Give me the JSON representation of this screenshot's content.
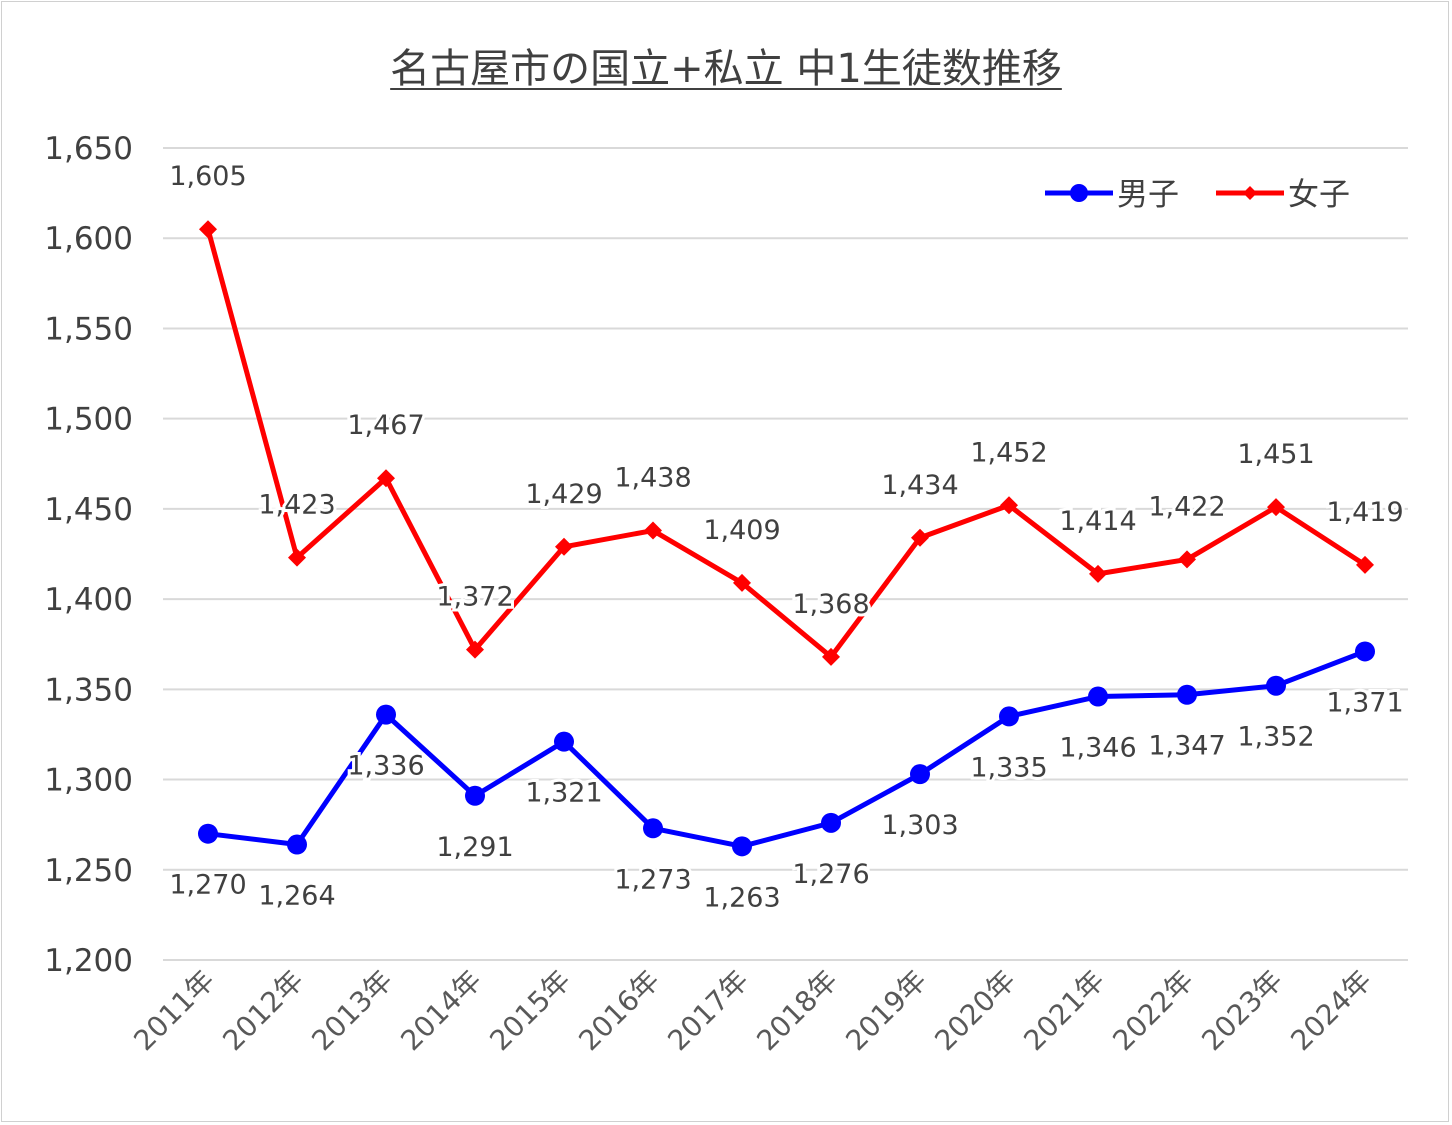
{
  "chart_data": {
    "type": "line",
    "title": "名古屋市の国立+私立 中1生徒数推移",
    "xlabel": "",
    "ylabel": "",
    "ylim": [
      1200,
      1650
    ],
    "yticks": [
      1200,
      1250,
      1300,
      1350,
      1400,
      1450,
      1500,
      1550,
      1600,
      1650
    ],
    "ytick_labels": [
      "1,200",
      "1,250",
      "1,300",
      "1,350",
      "1,400",
      "1,450",
      "1,500",
      "1,550",
      "1,600",
      "1,650"
    ],
    "categories": [
      "2011年",
      "2012年",
      "2013年",
      "2014年",
      "2015年",
      "2016年",
      "2017年",
      "2018年",
      "2019年",
      "2020年",
      "2021年",
      "2022年",
      "2023年",
      "2024年"
    ],
    "grid": true,
    "legend_position": "top-right",
    "series": [
      {
        "name": "男子",
        "color": "#0000ff",
        "marker": "circle",
        "label_position": "below",
        "values": [
          1270,
          1264,
          1336,
          1291,
          1321,
          1273,
          1263,
          1276,
          1303,
          1335,
          1346,
          1347,
          1352,
          1371
        ]
      },
      {
        "name": "女子",
        "color": "#ff0000",
        "marker": "diamond",
        "label_position": "above",
        "values": [
          1605,
          1423,
          1467,
          1372,
          1429,
          1438,
          1409,
          1368,
          1434,
          1452,
          1414,
          1422,
          1451,
          1419
        ]
      }
    ]
  }
}
